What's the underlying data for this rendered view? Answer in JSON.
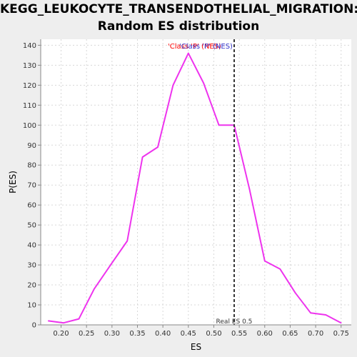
{
  "chart_data": {
    "type": "line",
    "title_line_1": "KEGG_LEUKOCYTE_TRANSENDOTHELIAL_MIGRATION:",
    "title_line_2": "Random ES distribution",
    "xlabel": "ES",
    "ylabel": "P(ES)",
    "xlim": [
      0.16,
      0.77
    ],
    "ylim": [
      0,
      143
    ],
    "x_ticks": [
      0.2,
      0.25,
      0.3,
      0.35,
      0.4,
      0.45,
      0.5,
      0.55,
      0.6,
      0.65,
      0.7,
      0.75
    ],
    "x_tick_labels": [
      "0.20",
      "0.25",
      "0.30",
      "0.35",
      "0.40",
      "0.45",
      "0.50",
      "0.55",
      "0.60",
      "0.65",
      "0.70",
      "0.75"
    ],
    "y_ticks": [
      0,
      10,
      20,
      30,
      40,
      50,
      60,
      70,
      80,
      90,
      100,
      110,
      120,
      130,
      140
    ],
    "grid": true,
    "legend_placement": "top-center",
    "legend_entries": [
      {
        "label": "'Class 'P' (NES)",
        "color": "#ff0000"
      },
      {
        "label": "'Class 'P' (NES)",
        "color": "#3333cc"
      }
    ],
    "series": [
      {
        "color": "#ee33ee",
        "x": [
          0.175,
          0.205,
          0.235,
          0.265,
          0.3,
          0.33,
          0.36,
          0.39,
          0.42,
          0.45,
          0.48,
          0.51,
          0.54,
          0.57,
          0.6,
          0.63,
          0.66,
          0.69,
          0.72,
          0.75
        ],
        "y": [
          2,
          1,
          3,
          18,
          31,
          42,
          84,
          89,
          120,
          136,
          121,
          100,
          100,
          68,
          32,
          28,
          16,
          6,
          5,
          1
        ]
      }
    ],
    "marker": {
      "x": 0.54,
      "label": "Real ES 0.5",
      "color": "#333333"
    }
  }
}
